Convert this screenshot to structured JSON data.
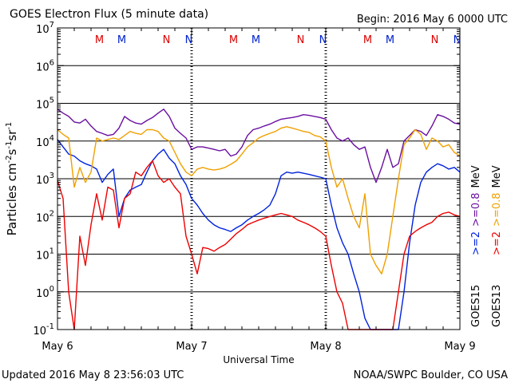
{
  "header": {
    "title": "GOES Electron Flux (5 minute data)",
    "begin": "Begin: 2016 May 6 0000 UTC"
  },
  "footer": {
    "updated": "Updated 2016 May  8 23:56:03 UTC",
    "source": "NOAA/SWPC Boulder, CO USA"
  },
  "colors": {
    "goes15_gt2": "#0022dd",
    "goes15_gt08": "#6a0fa0",
    "goes13_gt2": "#ee0000",
    "goes13_gt08": "#f0a000",
    "marker_m": "#dd0000",
    "marker_n": "#0022cc"
  },
  "chart_data": {
    "type": "line",
    "title": "GOES Electron Flux (5 minute data)",
    "xlabel": "Universal Time",
    "ylabel": "Particles cm⁻²s⁻¹sr⁻¹",
    "y_scale": "log",
    "ylim": [
      0.1,
      10000000
    ],
    "y_ticks": [
      {
        "value": 10000000,
        "base": "10",
        "exp": "7"
      },
      {
        "value": 1000000,
        "base": "10",
        "exp": "6"
      },
      {
        "value": 100000,
        "base": "10",
        "exp": "5"
      },
      {
        "value": 10000,
        "base": "10",
        "exp": "4"
      },
      {
        "value": 1000,
        "base": "10",
        "exp": "3"
      },
      {
        "value": 100,
        "base": "10",
        "exp": "2"
      },
      {
        "value": 10,
        "base": "10",
        "exp": "1"
      },
      {
        "value": 1,
        "base": "10",
        "exp": "0"
      },
      {
        "value": 0.1,
        "base": "10",
        "exp": "-1"
      }
    ],
    "x_unit": "hours since start",
    "xlim": [
      0,
      72
    ],
    "x_ticks": [
      {
        "value": 0,
        "label": "May 6"
      },
      {
        "value": 24,
        "label": "May 7"
      },
      {
        "value": 48,
        "label": "May 8"
      },
      {
        "value": 72,
        "label": "May 9"
      }
    ],
    "grid": "horizontal at each decade",
    "threshold_line": 1000,
    "markers": [
      {
        "x": 7.5,
        "label": "M",
        "color": "red"
      },
      {
        "x": 11.5,
        "label": "M",
        "color": "blue"
      },
      {
        "x": 19.5,
        "label": "N",
        "color": "red"
      },
      {
        "x": 23.5,
        "label": "N",
        "color": "blue"
      },
      {
        "x": 31.5,
        "label": "M",
        "color": "red"
      },
      {
        "x": 35.5,
        "label": "M",
        "color": "blue"
      },
      {
        "x": 43.5,
        "label": "N",
        "color": "red"
      },
      {
        "x": 47.5,
        "label": "N",
        "color": "blue"
      },
      {
        "x": 55.5,
        "label": "M",
        "color": "red"
      },
      {
        "x": 59.5,
        "label": "M",
        "color": "blue"
      },
      {
        "x": 67.5,
        "label": "N",
        "color": "red"
      },
      {
        "x": 71.5,
        "label": "N",
        "color": "blue"
      }
    ],
    "series": [
      {
        "name": ">=0.8 MeV",
        "satellite": "GOES15",
        "color": "#6a0fa0",
        "x": [
          0,
          1,
          2,
          3,
          4,
          5,
          6,
          7,
          8,
          9,
          10,
          11,
          12,
          13,
          14,
          15,
          16,
          17,
          18,
          19,
          20,
          21,
          22,
          23,
          24,
          25,
          26,
          27,
          28,
          29,
          30,
          31,
          32,
          33,
          34,
          35,
          36,
          37,
          38,
          39,
          40,
          41,
          42,
          43,
          44,
          45,
          46,
          47,
          48,
          49,
          50,
          51,
          52,
          53,
          54,
          55,
          56,
          57,
          58,
          59,
          60,
          61,
          62,
          63,
          64,
          65,
          66,
          67,
          68,
          69,
          70,
          71,
          72
        ],
        "y": [
          70000,
          55000,
          45000,
          32000,
          30000,
          38000,
          25000,
          18000,
          16000,
          14000,
          15000,
          22000,
          45000,
          35000,
          30000,
          28000,
          35000,
          42000,
          55000,
          70000,
          45000,
          22000,
          16000,
          12000,
          6000,
          7000,
          7000,
          6500,
          6000,
          5500,
          6000,
          4000,
          4500,
          7000,
          14000,
          20000,
          22000,
          25000,
          28000,
          33000,
          38000,
          40000,
          42000,
          45000,
          50000,
          48000,
          45000,
          42000,
          38000,
          20000,
          12000,
          10000,
          12000,
          8000,
          6000,
          7000,
          2000,
          800,
          2000,
          6000,
          2000,
          2500,
          10000,
          14000,
          20000,
          18000,
          14000,
          25000,
          50000,
          45000,
          38000,
          30000,
          28000
        ]
      },
      {
        "name": ">=2 MeV",
        "satellite": "GOES15",
        "color": "#0022dd",
        "x": [
          0,
          1,
          2,
          3,
          4,
          5,
          6,
          7,
          8,
          9,
          10,
          11,
          12,
          13,
          14,
          15,
          16,
          17,
          18,
          19,
          20,
          21,
          22,
          23,
          24,
          25,
          26,
          27,
          28,
          29,
          30,
          31,
          32,
          33,
          34,
          35,
          36,
          37,
          38,
          39,
          40,
          41,
          42,
          43,
          44,
          45,
          46,
          47,
          48,
          49,
          50,
          51,
          52,
          53,
          54,
          55,
          56,
          57,
          58,
          59,
          60,
          61,
          62,
          63,
          64,
          65,
          66,
          67,
          68,
          69,
          70,
          71,
          72
        ],
        "y": [
          11000,
          7000,
          4500,
          4000,
          3000,
          2500,
          2200,
          1800,
          800,
          1300,
          1800,
          100,
          300,
          500,
          600,
          700,
          1500,
          3000,
          4500,
          6000,
          3500,
          2500,
          1200,
          700,
          300,
          200,
          120,
          80,
          60,
          50,
          45,
          40,
          50,
          60,
          80,
          100,
          120,
          150,
          200,
          400,
          1200,
          1500,
          1400,
          1500,
          1400,
          1300,
          1200,
          1100,
          1000,
          200,
          50,
          20,
          10,
          3,
          1,
          0.2,
          0.1,
          0.1,
          0.1,
          0.1,
          0.1,
          0.1,
          1,
          20,
          200,
          800,
          1500,
          2000,
          2500,
          2200,
          1800,
          2000,
          1500
        ]
      },
      {
        "name": ">=0.8 MeV",
        "satellite": "GOES13",
        "color": "#f0a000",
        "x": [
          0,
          1,
          2,
          3,
          4,
          5,
          6,
          7,
          8,
          9,
          10,
          11,
          12,
          13,
          14,
          15,
          16,
          17,
          18,
          19,
          20,
          21,
          22,
          23,
          24,
          25,
          26,
          27,
          28,
          29,
          30,
          31,
          32,
          33,
          34,
          35,
          36,
          37,
          38,
          39,
          40,
          41,
          42,
          43,
          44,
          45,
          46,
          47,
          48,
          49,
          50,
          51,
          52,
          53,
          54,
          55,
          56,
          57,
          58,
          59,
          60,
          61,
          62,
          63,
          64,
          65,
          66,
          67,
          68,
          69,
          70,
          71,
          72
        ],
        "y": [
          20000,
          15000,
          12000,
          600,
          2000,
          800,
          1500,
          12000,
          10000,
          11000,
          12000,
          11000,
          14000,
          18000,
          16000,
          15000,
          20000,
          20000,
          18000,
          12000,
          10000,
          5000,
          2500,
          1500,
          1200,
          1800,
          2000,
          1800,
          1700,
          1800,
          2000,
          2400,
          3000,
          4500,
          7000,
          9000,
          12000,
          14000,
          16000,
          18000,
          22000,
          24000,
          22000,
          20000,
          18000,
          17000,
          14000,
          13000,
          10000,
          2000,
          600,
          1000,
          300,
          100,
          50,
          400,
          10,
          5,
          3,
          10,
          100,
          1000,
          8000,
          12000,
          20000,
          15000,
          6000,
          12000,
          10000,
          7000,
          8000,
          5000,
          4000
        ]
      },
      {
        "name": ">=2 MeV",
        "satellite": "GOES13",
        "color": "#ee0000",
        "x": [
          0,
          1,
          2,
          3,
          4,
          5,
          6,
          7,
          8,
          9,
          10,
          11,
          12,
          13,
          14,
          15,
          16,
          17,
          18,
          19,
          20,
          21,
          22,
          23,
          24,
          25,
          26,
          27,
          28,
          29,
          30,
          31,
          32,
          33,
          34,
          35,
          36,
          37,
          38,
          39,
          40,
          41,
          42,
          43,
          44,
          45,
          46,
          47,
          48,
          49,
          50,
          51,
          52,
          53,
          54,
          55,
          56,
          57,
          58,
          59,
          60,
          61,
          62,
          63,
          64,
          65,
          66,
          67,
          68,
          69,
          70,
          71,
          72
        ],
        "y": [
          900,
          300,
          1,
          0.1,
          30,
          5,
          60,
          400,
          80,
          600,
          500,
          50,
          300,
          400,
          1500,
          1200,
          2000,
          3000,
          1200,
          800,
          1000,
          600,
          400,
          30,
          10,
          3,
          15,
          14,
          12,
          15,
          18,
          25,
          35,
          45,
          60,
          70,
          80,
          90,
          100,
          110,
          120,
          110,
          100,
          80,
          70,
          60,
          50,
          40,
          30,
          5,
          1,
          0.5,
          0.1,
          0.1,
          0.1,
          0.1,
          0.1,
          0.1,
          0.1,
          0.1,
          0.1,
          1,
          10,
          30,
          40,
          50,
          60,
          70,
          100,
          120,
          130,
          110,
          100
        ]
      }
    ]
  },
  "right_labels": {
    "goes15": "GOES15",
    "goes13": "GOES13",
    "g15_2": ">=2",
    "g15_08": ">=0.8",
    "g13_2": ">=2",
    "g13_08": ">=0.8",
    "unit": "MeV"
  }
}
